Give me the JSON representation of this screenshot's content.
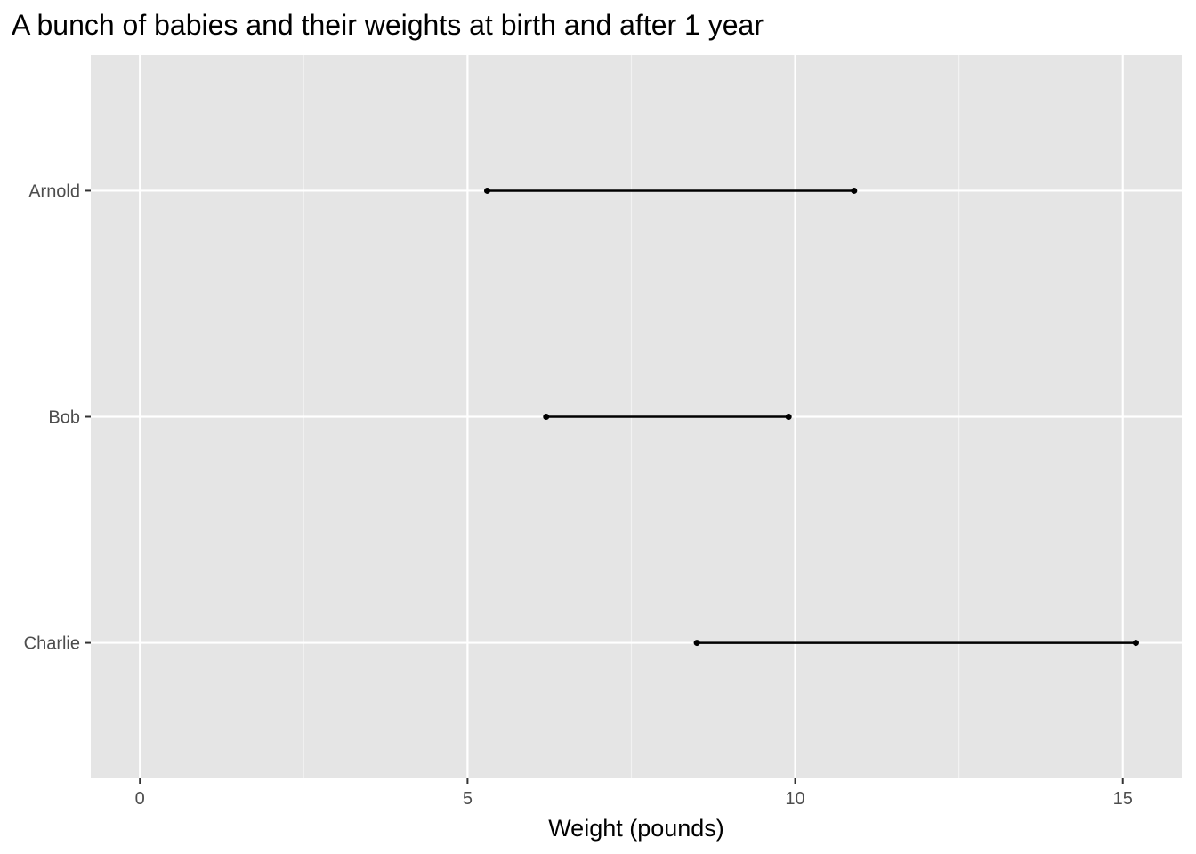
{
  "chart_data": {
    "type": "dumbbell",
    "title": "A bunch of babies and their weights at birth and after 1 year",
    "xlabel": "Weight (pounds)",
    "ylabel": "",
    "xlim": [
      -0.75,
      15.9
    ],
    "x_ticks": [
      0,
      5,
      10,
      15
    ],
    "x_tick_labels": [
      "0",
      "5",
      "10",
      "15"
    ],
    "categories": [
      "Arnold",
      "Bob",
      "Charlie"
    ],
    "series": [
      {
        "values": [
          5.3,
          6.2,
          8.5
        ]
      },
      {
        "values": [
          10.9,
          9.9,
          15.2
        ]
      }
    ],
    "grid": true,
    "legend": "none",
    "colors": {
      "panel_background": "#e5e5e5",
      "grid_major": "#ffffff",
      "grid_minor": "#f2f2f2",
      "mark": "#000000",
      "tick_text": "#4d4d4d",
      "tick_mark": "#333333"
    }
  }
}
